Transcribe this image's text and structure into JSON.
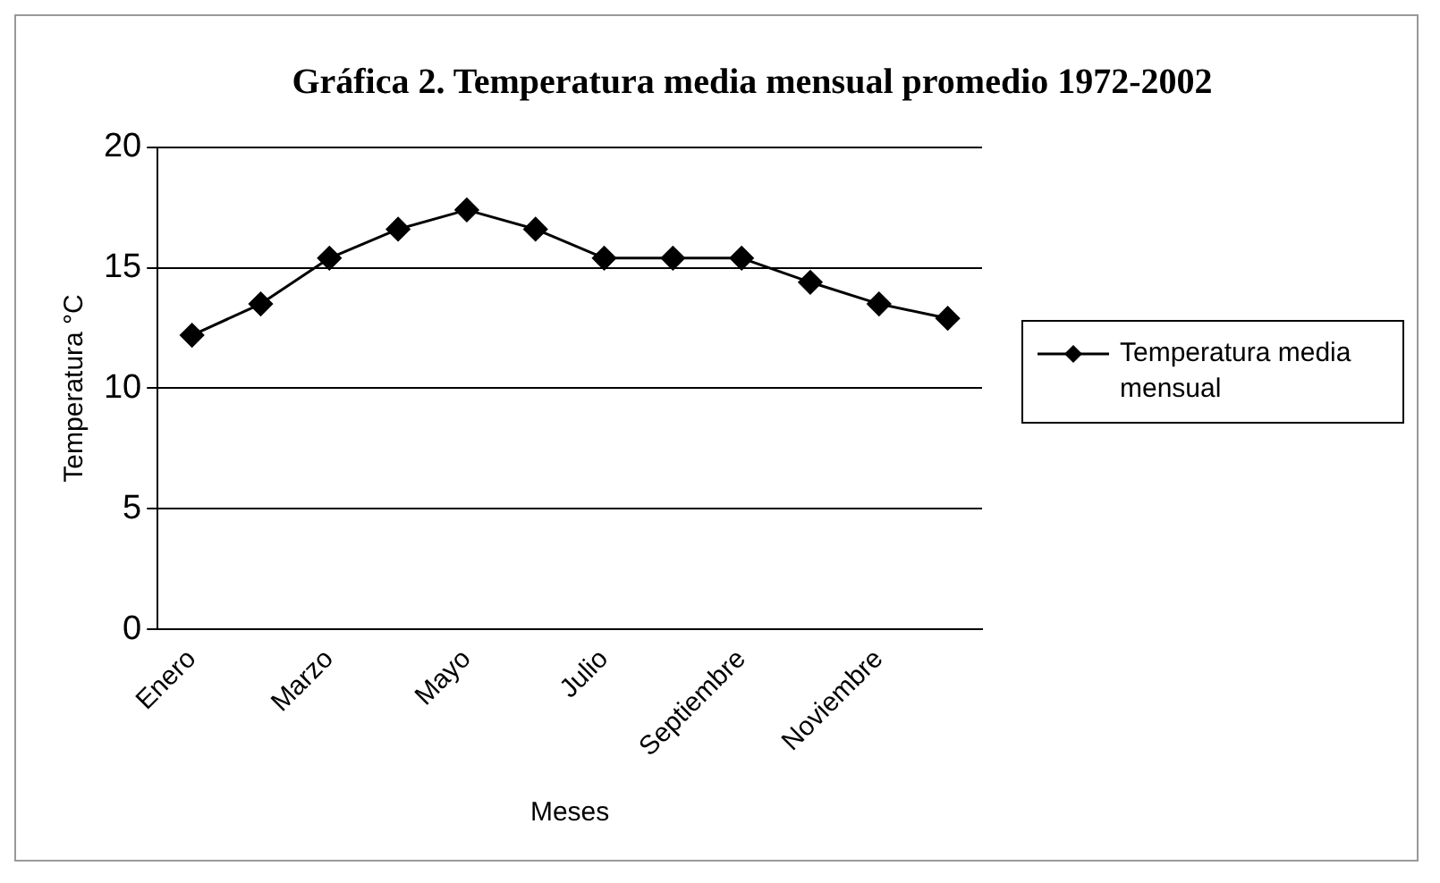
{
  "chart_data": {
    "type": "line",
    "title": "Gráfica 2. Temperatura media mensual promedio 1972-2002",
    "xlabel": "Meses",
    "ylabel": "Temperatura °C",
    "categories": [
      "Enero",
      null,
      "Marzo",
      null,
      "Mayo",
      null,
      "Julio",
      null,
      "Septiembre",
      null,
      "Noviembre",
      null
    ],
    "series": [
      {
        "name": "Temperatura media mensual",
        "color": "#000000",
        "values": [
          12.2,
          13.5,
          15.4,
          16.6,
          17.4,
          16.6,
          15.4,
          15.4,
          15.4,
          14.4,
          13.5,
          12.9
        ]
      }
    ],
    "ylim": [
      0,
      20
    ],
    "yticks": [
      0,
      5,
      10,
      15,
      20
    ],
    "grid": "y",
    "legend": "right",
    "marker": "diamond",
    "line_style": "solid"
  }
}
